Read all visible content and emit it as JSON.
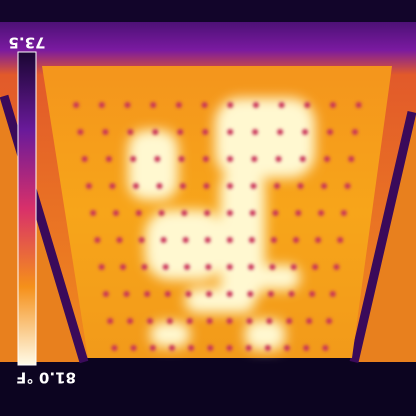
{
  "scale": {
    "top_label": "73.5",
    "bottom_label": "81.0 °F"
  }
}
